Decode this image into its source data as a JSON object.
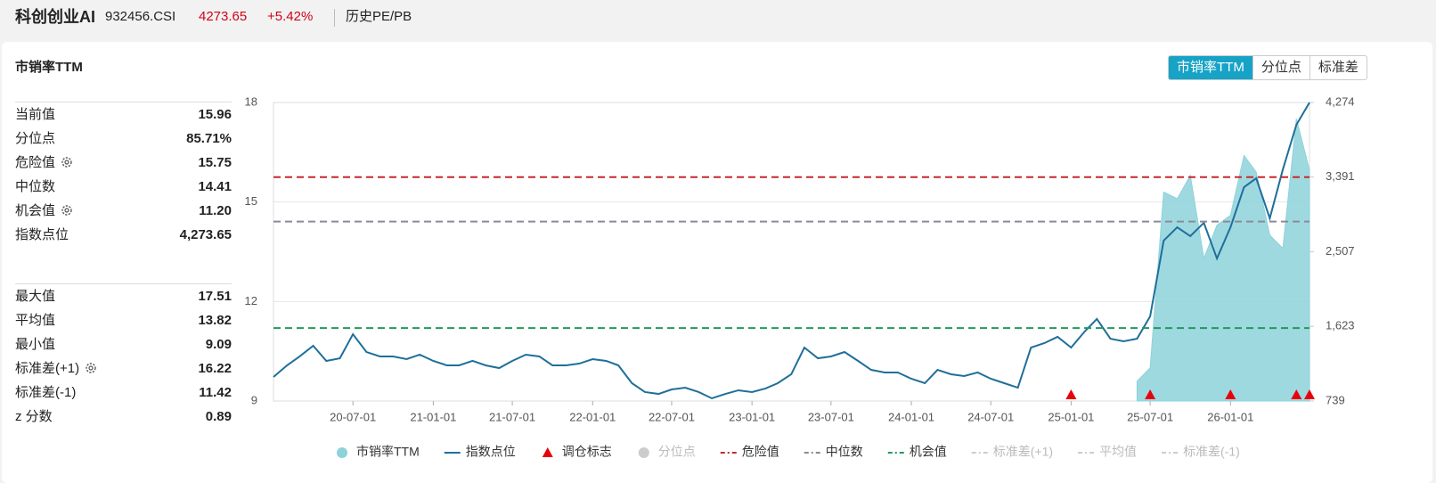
{
  "header": {
    "name": "科创创业AI",
    "code": "932456.CSI",
    "price": "4273.65",
    "change": "+5.42%",
    "link": "历史PE/PB"
  },
  "panel": {
    "title": "市销率TTM",
    "tabs": [
      "市销率TTM",
      "分位点",
      "标准差"
    ]
  },
  "stats": {
    "groups": [
      [
        {
          "label": "当前值",
          "value": "15.96"
        },
        {
          "label": "分位点",
          "value": "85.71%"
        },
        {
          "label": "危险值",
          "value": "15.75"
        },
        {
          "label": "中位数",
          "value": "14.41"
        },
        {
          "label": "机会值",
          "value": "11.20"
        },
        {
          "label": "指数点位",
          "value": "4,273.65"
        }
      ],
      [
        {
          "label": "最大值",
          "value": "17.51"
        },
        {
          "label": "平均值",
          "value": "13.82"
        },
        {
          "label": "最小值",
          "value": "9.09"
        },
        {
          "label": "标准差(+1)",
          "value": "16.22"
        },
        {
          "label": "标准差(-1)",
          "value": "11.42"
        },
        {
          "label": "z 分数",
          "value": "0.89"
        }
      ]
    ]
  },
  "chart_data": {
    "type": "area-line",
    "x": [
      "20-01-01",
      "20-02-01",
      "20-03-01",
      "20-04-01",
      "20-05-01",
      "20-06-01",
      "20-07-01",
      "20-08-01",
      "20-09-01",
      "20-10-01",
      "20-11-01",
      "20-12-01",
      "21-01-01",
      "21-02-01",
      "21-03-01",
      "21-04-01",
      "21-05-01",
      "21-06-01",
      "21-07-01",
      "21-08-01",
      "21-09-01",
      "21-10-01",
      "21-11-01",
      "21-12-01",
      "22-01-01",
      "22-02-01",
      "22-03-01",
      "22-04-01",
      "22-05-01",
      "22-06-01",
      "22-07-01",
      "22-08-01",
      "22-09-01",
      "22-10-01",
      "22-11-01",
      "22-12-01",
      "23-01-01",
      "23-02-01",
      "23-03-01",
      "23-04-01",
      "23-05-01",
      "23-06-01",
      "23-07-01",
      "23-08-01",
      "23-09-01",
      "23-10-01",
      "23-11-01",
      "23-12-01",
      "24-01-01",
      "24-02-01",
      "24-03-01",
      "24-04-01",
      "24-05-01",
      "24-06-01",
      "24-07-01",
      "24-08-01",
      "24-09-01",
      "24-10-01",
      "24-11-01",
      "24-12-01",
      "25-01-01",
      "25-02-01",
      "25-03-01",
      "25-04-01",
      "25-05-01",
      "25-06-01",
      "25-07-01",
      "25-08-01",
      "25-09-01",
      "25-10-01",
      "25-11-01",
      "25-12-01",
      "26-01-01",
      "26-02-01",
      "26-03-01",
      "26-04-01",
      "26-05-01",
      "26-06-01",
      "26-07-01"
    ],
    "xlim": [
      "20-01-01",
      "26-07-01"
    ],
    "xticks": [
      "20-07-01",
      "21-01-01",
      "21-07-01",
      "22-01-01",
      "22-07-01",
      "23-01-01",
      "23-07-01",
      "24-01-01",
      "24-07-01",
      "25-01-01",
      "25-07-01",
      "26-01-01"
    ],
    "ylim": [
      9,
      18
    ],
    "yticks": [
      9,
      12,
      15,
      18
    ],
    "y2lim": [
      739,
      4274
    ],
    "y2ticks": [
      739,
      {
        "value": 1623,
        "label": "1,623"
      },
      {
        "value": 2507,
        "label": "2,507"
      },
      {
        "value": 3391,
        "label": "3,391"
      },
      {
        "value": 4274,
        "label": "4,274"
      }
    ],
    "grid": true,
    "series": [
      {
        "name": "市销率TTM",
        "kind": "area",
        "color": "#8ed2da",
        "values": [
          null,
          null,
          null,
          null,
          null,
          null,
          null,
          null,
          null,
          null,
          null,
          null,
          null,
          null,
          null,
          null,
          null,
          null,
          null,
          null,
          null,
          null,
          null,
          null,
          null,
          null,
          null,
          null,
          null,
          null,
          null,
          null,
          null,
          null,
          null,
          null,
          null,
          null,
          null,
          null,
          null,
          null,
          null,
          null,
          null,
          null,
          null,
          null,
          null,
          null,
          null,
          null,
          null,
          null,
          null,
          null,
          null,
          null,
          null,
          null,
          null,
          null,
          null,
          null,
          null,
          9.6,
          10.0,
          15.3,
          15.1,
          15.8,
          13.3,
          14.3,
          14.6,
          16.4,
          15.9,
          14.0,
          13.6,
          17.51,
          15.96
        ]
      },
      {
        "name": "指数点位",
        "kind": "line",
        "axis": "y2",
        "color": "#1f6f9a",
        "values": [
          1024,
          1161,
          1267,
          1393,
          1214,
          1245,
          1530,
          1319,
          1267,
          1267,
          1235,
          1288,
          1214,
          1161,
          1161,
          1214,
          1161,
          1129,
          1214,
          1288,
          1267,
          1161,
          1161,
          1182,
          1235,
          1214,
          1161,
          950,
          845,
          823,
          876,
          897,
          845,
          771,
          823,
          866,
          845,
          887,
          950,
          1056,
          1372,
          1245,
          1267,
          1319,
          1214,
          1108,
          1077,
          1077,
          1003,
          950,
          1108,
          1056,
          1035,
          1077,
          1003,
          950,
          897,
          1372,
          1425,
          1499,
          1372,
          1562,
          1710,
          1477,
          1446,
          1477,
          1741,
          2638,
          2796,
          2691,
          2849,
          2427,
          2796,
          3271,
          3377,
          2902,
          3482,
          4010,
          4273.65
        ]
      }
    ],
    "rebalance": {
      "name": "调仓标志",
      "color": "#e8000b",
      "x": [
        "25-01-01",
        "25-07-01",
        "26-01-01",
        "26-06-01",
        "26-07-01"
      ]
    },
    "quantile": {
      "name": "分位点",
      "color": "#cccccc",
      "visible": false
    },
    "reference_lines": [
      {
        "name": "危险值",
        "value": 15.75,
        "color": "#c8282d",
        "visible": true
      },
      {
        "name": "中位数",
        "value": 14.41,
        "color": "#8a8a99",
        "visible": true
      },
      {
        "name": "机会值",
        "value": 11.2,
        "color": "#22995a",
        "visible": true
      },
      {
        "name": "标准差(+1)",
        "value": 16.22,
        "color": "#cccccc",
        "visible": false
      },
      {
        "name": "平均值",
        "value": 13.82,
        "color": "#cccccc",
        "visible": false
      },
      {
        "name": "标准差(-1)",
        "value": 11.42,
        "color": "#cccccc",
        "visible": false
      }
    ]
  }
}
